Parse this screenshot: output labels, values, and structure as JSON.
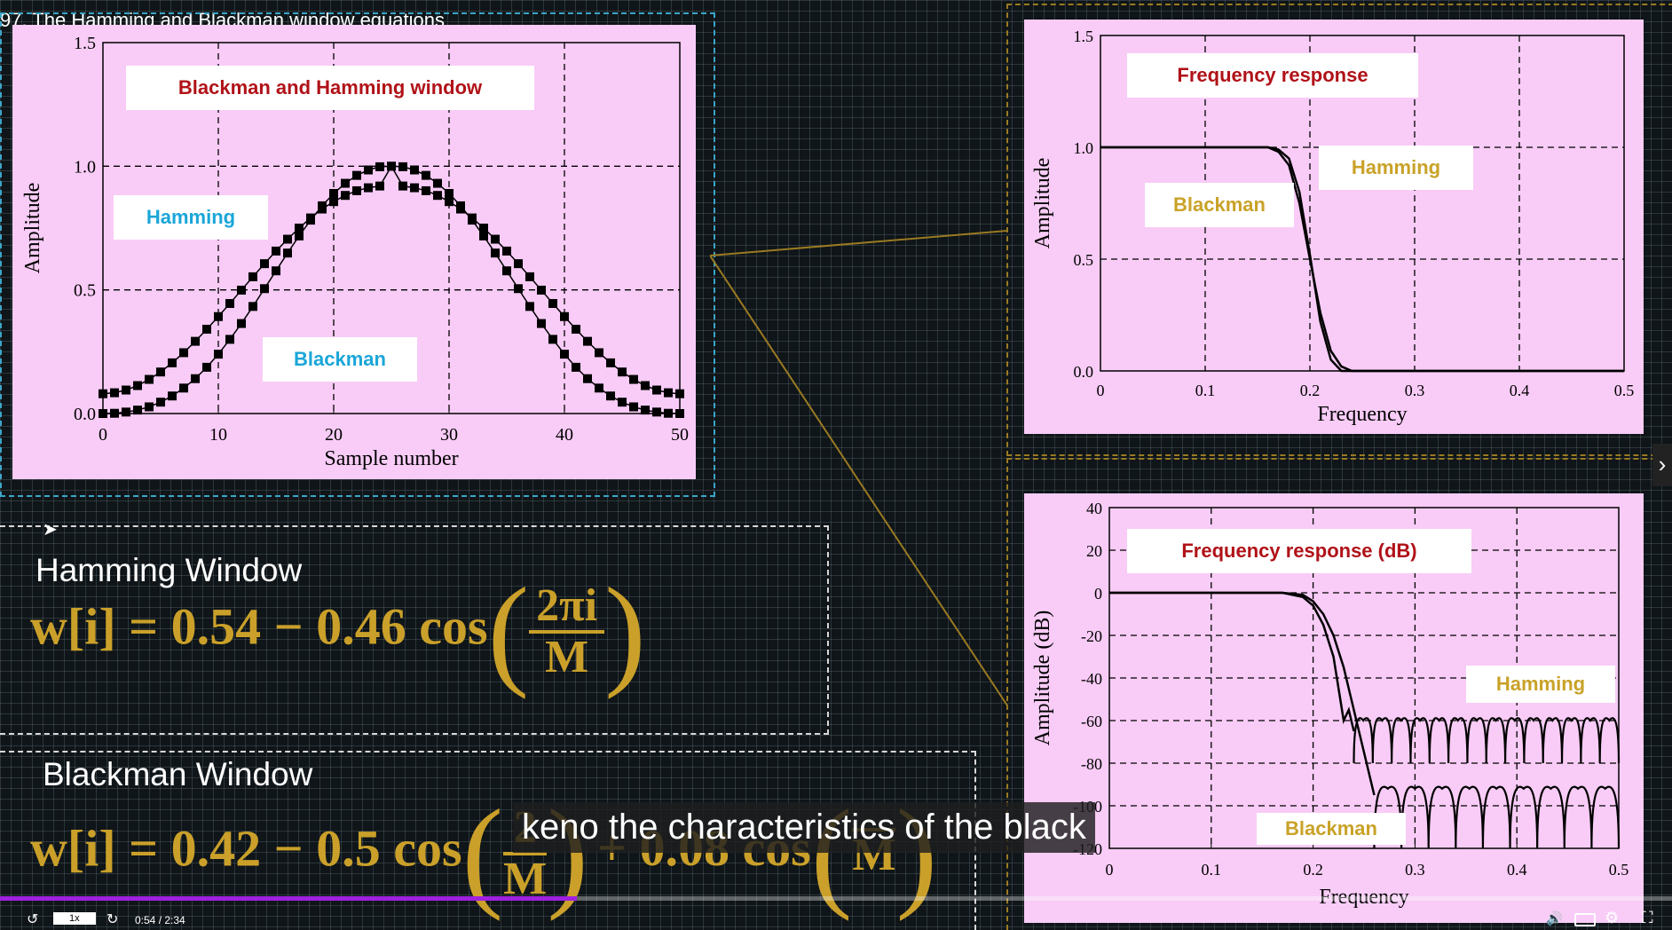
{
  "video": {
    "title": "97. The Hamming and Blackman window equations",
    "caption": "keno the characteristics of the black",
    "speed": "1x",
    "time": "0:54 / 2:34",
    "progress": 0.345
  },
  "equations": {
    "hamming_title": "Hamming Window",
    "hamming_lhs": "w[i] = 0.54 − 0.46 cos",
    "hamming_num": "2πi",
    "hamming_den": "M",
    "blackman_title": "Blackman  Window",
    "blackman_lhs": "w[i] = 0.42 − 0.5 cos",
    "blackman_num": "2",
    "blackman_den": "M",
    "blackman_mid": "+ 0.08 cos",
    "blackman_num2": "",
    "blackman_den2": "M"
  },
  "icons": [
    "cursor-icon",
    "replay-icon",
    "forward-icon",
    "volume-icon",
    "subtitles-icon",
    "settings-icon",
    "fullscreen-icon",
    "chevron-right-icon"
  ],
  "colors": {
    "panel": "#f8ccf6",
    "accent_red": "#b01218",
    "accent_cyan": "#1aa6d8",
    "accent_gold": "#c9a228",
    "progress": "#a020e0"
  },
  "chart_data": [
    {
      "type": "scatter",
      "title": "Blackman and Hamming window",
      "xlabel": "Sample number",
      "ylabel": "Amplitude",
      "xlim": [
        0,
        50
      ],
      "ylim": [
        0,
        1.5
      ],
      "xticks": [
        "0",
        "10",
        "20",
        "30",
        "40",
        "50"
      ],
      "yticks": [
        "0.0",
        "0.5",
        "1.0",
        "1.5"
      ],
      "annotations": [
        "Hamming",
        "Blackman"
      ],
      "grid": true,
      "series": [
        {
          "name": "Hamming",
          "x": [
            0,
            1,
            2,
            3,
            4,
            5,
            6,
            7,
            8,
            9,
            10,
            11,
            12,
            13,
            14,
            15,
            16,
            17,
            18,
            19,
            20,
            21,
            22,
            23,
            24,
            25,
            26,
            27,
            28,
            29,
            30,
            31,
            32,
            33,
            34,
            35,
            36,
            37,
            38,
            39,
            40,
            41,
            42,
            43,
            44,
            45,
            46,
            47,
            48,
            49,
            50
          ],
          "y": [
            0.08,
            0.084,
            0.095,
            0.113,
            0.138,
            0.168,
            0.205,
            0.246,
            0.292,
            0.341,
            0.392,
            0.445,
            0.499,
            0.553,
            0.606,
            0.657,
            0.705,
            0.75,
            0.791,
            0.827,
            0.857,
            0.882,
            0.901,
            0.913,
            0.92,
            1.0,
            0.92,
            0.913,
            0.901,
            0.882,
            0.857,
            0.827,
            0.791,
            0.75,
            0.705,
            0.657,
            0.606,
            0.553,
            0.499,
            0.445,
            0.392,
            0.341,
            0.292,
            0.246,
            0.205,
            0.168,
            0.138,
            0.113,
            0.095,
            0.084,
            0.08
          ]
        },
        {
          "name": "Blackman",
          "x": [
            0,
            1,
            2,
            3,
            4,
            5,
            6,
            7,
            8,
            9,
            10,
            11,
            12,
            13,
            14,
            15,
            16,
            17,
            18,
            19,
            20,
            21,
            22,
            23,
            24,
            25,
            26,
            27,
            28,
            29,
            30,
            31,
            32,
            33,
            34,
            35,
            36,
            37,
            38,
            39,
            40,
            41,
            42,
            43,
            44,
            45,
            46,
            47,
            48,
            49,
            50
          ],
          "y": [
            0.0,
            0.001,
            0.006,
            0.014,
            0.027,
            0.046,
            0.071,
            0.103,
            0.141,
            0.187,
            0.24,
            0.3,
            0.364,
            0.433,
            0.505,
            0.577,
            0.649,
            0.718,
            0.782,
            0.84,
            0.89,
            0.931,
            0.963,
            0.985,
            0.998,
            1.0,
            0.998,
            0.985,
            0.963,
            0.931,
            0.89,
            0.84,
            0.782,
            0.718,
            0.649,
            0.577,
            0.505,
            0.433,
            0.364,
            0.3,
            0.24,
            0.187,
            0.141,
            0.103,
            0.071,
            0.046,
            0.027,
            0.014,
            0.006,
            0.001,
            0.0
          ]
        }
      ]
    },
    {
      "type": "line",
      "title": "Frequency response",
      "xlabel": "Frequency",
      "ylabel": "Amplitude",
      "xlim": [
        0,
        0.5
      ],
      "ylim": [
        0,
        1.5
      ],
      "xticks": [
        "0",
        "0.1",
        "0.2",
        "0.3",
        "0.4",
        "0.5"
      ],
      "yticks": [
        "0.0",
        "0.5",
        "1.0",
        "1.5"
      ],
      "annotations": [
        "Hamming",
        "Blackman"
      ],
      "grid": true,
      "series": [
        {
          "name": "Hamming",
          "x": [
            0,
            0.1,
            0.16,
            0.17,
            0.18,
            0.19,
            0.2,
            0.21,
            0.22,
            0.23,
            0.24,
            0.3,
            0.4,
            0.5
          ],
          "y": [
            1.0,
            1.0,
            1.0,
            0.99,
            0.95,
            0.8,
            0.52,
            0.22,
            0.05,
            0.0,
            0.0,
            0.0,
            0.0,
            0.0
          ]
        },
        {
          "name": "Blackman",
          "x": [
            0,
            0.1,
            0.16,
            0.17,
            0.18,
            0.19,
            0.2,
            0.21,
            0.22,
            0.23,
            0.24,
            0.3,
            0.4,
            0.5
          ],
          "y": [
            1.0,
            1.0,
            1.0,
            0.98,
            0.92,
            0.75,
            0.5,
            0.26,
            0.09,
            0.02,
            0.0,
            0.0,
            0.0,
            0.0
          ]
        }
      ]
    },
    {
      "type": "line",
      "title": "Frequency response (dB)",
      "xlabel": "Frequency",
      "ylabel": "Amplitude (dB)",
      "xlim": [
        0,
        0.5
      ],
      "ylim": [
        -120,
        40
      ],
      "xticks": [
        "0",
        "0.1",
        "0.2",
        "0.3",
        "0.4",
        "0.5"
      ],
      "yticks": [
        "40",
        "20",
        "0",
        "-20",
        "-40",
        "-60",
        "-80",
        "-100",
        "-120"
      ],
      "annotations": [
        "Hamming",
        "Blackman"
      ],
      "grid": true,
      "series": [
        {
          "name": "Hamming",
          "x": [
            0,
            0.1,
            0.17,
            0.19,
            0.2,
            0.21,
            0.22,
            0.225,
            0.23,
            0.235,
            0.24
          ],
          "y": [
            0,
            0,
            0,
            -2,
            -6,
            -15,
            -30,
            -45,
            -60,
            -55,
            -65
          ]
        },
        {
          "name": "Blackman",
          "x": [
            0,
            0.1,
            0.17,
            0.19,
            0.2,
            0.21,
            0.22,
            0.23,
            0.24,
            0.25,
            0.26
          ],
          "y": [
            0,
            0,
            0,
            -1,
            -4,
            -10,
            -20,
            -35,
            -55,
            -75,
            -95
          ]
        }
      ]
    }
  ]
}
